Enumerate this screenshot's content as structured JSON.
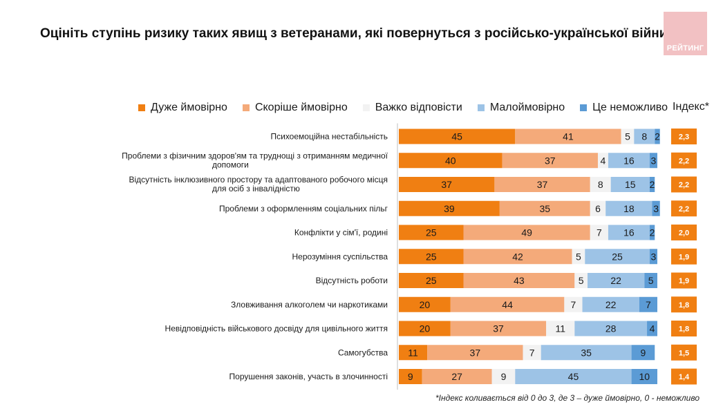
{
  "header": {
    "title": "Оцініть ступінь ризику таких явищ з ветеранами, які повернуться з російсько-української війни?",
    "logo_text": "РЕЙТИНГ"
  },
  "colors": {
    "very_likely": "#f07f12",
    "rather_likely": "#f4aa7a",
    "hard_to_say": "#f2f2f2",
    "unlikely": "#9dc3e6",
    "impossible": "#5b9bd5",
    "index_box": "#f07f12"
  },
  "legend": {
    "items": [
      "Дуже ймовірно",
      "Скоріше ймовірно",
      "Важко відповісти",
      "Малоймовірно",
      "Це неможливо"
    ],
    "index_label": "Індекс*"
  },
  "chart_data": {
    "type": "bar",
    "orientation": "horizontal-stacked-100",
    "title": "Оцініть ступінь ризику таких явищ з ветеранами, які повернуться з російсько-української війни?",
    "categories": [
      "Психоемоційна нестабільність",
      "Проблеми з фізичним здоров'ям та труднощі з отриманням медичної допомоги",
      "Відсутність інклюзивного простору та адаптованого робочого місця для осіб з інвалідністю",
      "Проблеми з оформленням соціальних пільг",
      "Конфлікти у сім'ї, родині",
      "Нерозуміння суспільства",
      "Відсутність роботи",
      "Зловживання алкоголем чи наркотиками",
      "Невідповідність військового досвіду для цивільного життя",
      "Самогубства",
      "Порушення законів, участь в злочинності"
    ],
    "series": [
      {
        "name": "Дуже ймовірно",
        "values": [
          45,
          40,
          37,
          39,
          25,
          25,
          25,
          20,
          20,
          11,
          9
        ]
      },
      {
        "name": "Скоріше ймовірно",
        "values": [
          41,
          37,
          37,
          35,
          49,
          42,
          43,
          44,
          37,
          37,
          27
        ]
      },
      {
        "name": "Важко відповісти",
        "values": [
          5,
          4,
          8,
          6,
          7,
          5,
          5,
          7,
          11,
          7,
          9
        ]
      },
      {
        "name": "Малоймовірно",
        "values": [
          8,
          16,
          15,
          18,
          16,
          25,
          22,
          22,
          28,
          35,
          45
        ]
      },
      {
        "name": "Це неможливо",
        "values": [
          2,
          3,
          2,
          3,
          2,
          3,
          5,
          7,
          4,
          9,
          10
        ]
      }
    ],
    "index": {
      "label": "Індекс*",
      "values": [
        "2,3",
        "2,2",
        "2,2",
        "2,2",
        "2,0",
        "1,9",
        "1,9",
        "1,8",
        "1,8",
        "1,5",
        "1,4"
      ]
    },
    "xlim": [
      0,
      100
    ],
    "legend_position": "top",
    "grid": false
  },
  "footnote": "*Індекс коливається від 0 до 3, де 3 – дуже ймовірно, 0 - неможливо"
}
